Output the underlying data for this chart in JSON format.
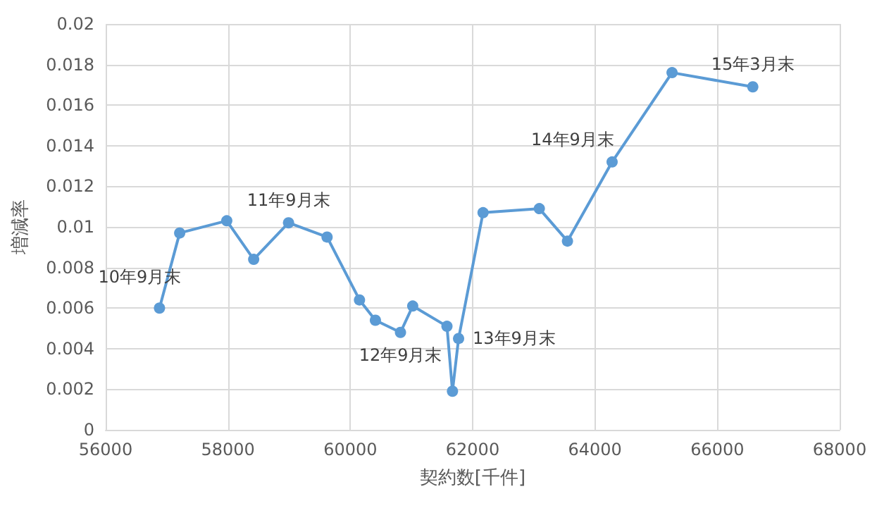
{
  "chart_data": {
    "type": "line",
    "xlabel": "契約数[千件]",
    "ylabel": "増減率",
    "xlim": [
      56000,
      68000
    ],
    "xticks": [
      56000,
      58000,
      60000,
      62000,
      64000,
      66000,
      68000
    ],
    "ylim": [
      0,
      0.02
    ],
    "yticks": [
      0,
      0.002,
      0.004,
      0.006,
      0.008,
      0.01,
      0.012,
      0.014,
      0.016,
      0.018,
      0.02
    ],
    "grid": true,
    "marker": "circle",
    "line_style": "solid",
    "series": [
      {
        "color": "#5b9bd5",
        "x": [
          56880,
          57210,
          57980,
          58420,
          58990,
          59620,
          60150,
          60410,
          60820,
          61020,
          61580,
          61670,
          61770,
          62170,
          63090,
          63550,
          64280,
          65260,
          66580
        ],
        "values": [
          0.006,
          0.0097,
          0.0103,
          0.0084,
          0.0102,
          0.0095,
          0.0064,
          0.0054,
          0.0048,
          0.0061,
          0.0051,
          0.0019,
          0.0045,
          0.0107,
          0.0109,
          0.0093,
          0.0132,
          0.0176,
          0.0169
        ]
      }
    ],
    "annotations": [
      {
        "text": "10年9月末",
        "x": 56880,
        "y": 0.006
      },
      {
        "text": "11年9月末",
        "x": 58990,
        "y": 0.0102
      },
      {
        "text": "12年9月末",
        "x": 60820,
        "y": 0.0048
      },
      {
        "text": "13年9月末",
        "x": 61770,
        "y": 0.0045
      },
      {
        "text": "14年9月末",
        "x": 64280,
        "y": 0.0132
      },
      {
        "text": "15年3月末",
        "x": 66580,
        "y": 0.0169
      }
    ]
  }
}
